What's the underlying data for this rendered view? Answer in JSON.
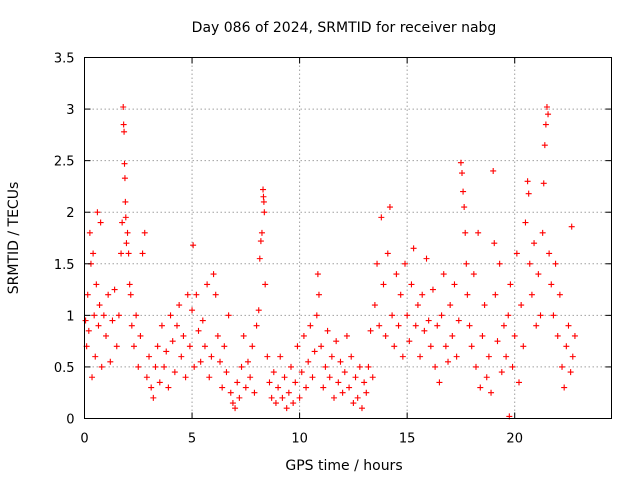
{
  "chart_data": {
    "type": "scatter",
    "title": "Day 086 of 2024, SRMTID for receiver nabg",
    "xlabel": "GPS time / hours",
    "ylabel": "SRMTID / TECUs",
    "xlim": [
      0,
      24.5
    ],
    "ylim": [
      0,
      3.5
    ],
    "xticks": [
      0,
      5,
      10,
      15,
      20
    ],
    "xtick_labels": [
      "0",
      "5",
      "10",
      "15",
      "20"
    ],
    "yticks": [
      0,
      0.5,
      1,
      1.5,
      2,
      2.5,
      3,
      3.5
    ],
    "ytick_labels": [
      "0",
      "0.5",
      "1",
      "1.5",
      "2",
      "2.5",
      "3",
      "3.5"
    ],
    "grid": true,
    "marker": "+",
    "color": "#ff0000",
    "series": [
      {
        "name": "SRMTID",
        "points": [
          [
            0.05,
            0.95
          ],
          [
            0.1,
            0.7
          ],
          [
            0.15,
            1.2
          ],
          [
            0.2,
            0.85
          ],
          [
            0.25,
            1.8
          ],
          [
            0.3,
            1.5
          ],
          [
            0.35,
            0.4
          ],
          [
            0.4,
            1.6
          ],
          [
            0.45,
            1.0
          ],
          [
            0.5,
            0.6
          ],
          [
            0.55,
            1.3
          ],
          [
            0.6,
            2.0
          ],
          [
            0.65,
            0.9
          ],
          [
            0.7,
            1.1
          ],
          [
            0.75,
            1.9
          ],
          [
            0.8,
            0.5
          ],
          [
            0.9,
            1.0
          ],
          [
            1.0,
            0.8
          ],
          [
            1.1,
            1.2
          ],
          [
            1.2,
            0.55
          ],
          [
            1.3,
            0.95
          ],
          [
            1.4,
            1.25
          ],
          [
            1.5,
            0.7
          ],
          [
            1.6,
            1.0
          ],
          [
            1.7,
            1.6
          ],
          [
            1.75,
            1.9
          ],
          [
            1.8,
            3.02
          ],
          [
            1.82,
            2.85
          ],
          [
            1.84,
            2.78
          ],
          [
            1.86,
            2.47
          ],
          [
            1.88,
            2.33
          ],
          [
            1.9,
            2.1
          ],
          [
            1.92,
            1.95
          ],
          [
            1.95,
            1.7
          ],
          [
            2.0,
            1.8
          ],
          [
            2.05,
            1.6
          ],
          [
            2.1,
            1.3
          ],
          [
            2.15,
            1.2
          ],
          [
            2.2,
            0.9
          ],
          [
            2.3,
            0.7
          ],
          [
            2.4,
            1.0
          ],
          [
            2.5,
            0.5
          ],
          [
            2.6,
            0.8
          ],
          [
            2.7,
            1.6
          ],
          [
            2.8,
            1.8
          ],
          [
            2.9,
            0.4
          ],
          [
            3.0,
            0.6
          ],
          [
            3.1,
            0.3
          ],
          [
            3.2,
            0.2
          ],
          [
            3.3,
            0.5
          ],
          [
            3.4,
            0.7
          ],
          [
            3.5,
            0.35
          ],
          [
            3.6,
            0.9
          ],
          [
            3.7,
            0.5
          ],
          [
            3.8,
            0.65
          ],
          [
            3.9,
            0.3
          ],
          [
            4.0,
            1.0
          ],
          [
            4.1,
            0.75
          ],
          [
            4.2,
            0.45
          ],
          [
            4.3,
            0.9
          ],
          [
            4.4,
            1.1
          ],
          [
            4.5,
            0.6
          ],
          [
            4.6,
            0.8
          ],
          [
            4.7,
            0.4
          ],
          [
            4.8,
            1.2
          ],
          [
            4.9,
            0.7
          ],
          [
            5.0,
            1.05
          ],
          [
            5.05,
            1.68
          ],
          [
            5.1,
            0.5
          ],
          [
            5.2,
            1.2
          ],
          [
            5.3,
            0.85
          ],
          [
            5.4,
            0.55
          ],
          [
            5.5,
            0.95
          ],
          [
            5.6,
            0.7
          ],
          [
            5.7,
            1.3
          ],
          [
            5.8,
            0.4
          ],
          [
            5.9,
            0.6
          ],
          [
            6.0,
            1.4
          ],
          [
            6.1,
            1.2
          ],
          [
            6.2,
            0.8
          ],
          [
            6.3,
            0.55
          ],
          [
            6.4,
            0.3
          ],
          [
            6.5,
            0.7
          ],
          [
            6.6,
            0.45
          ],
          [
            6.7,
            1.0
          ],
          [
            6.8,
            0.25
          ],
          [
            6.9,
            0.15
          ],
          [
            7.0,
            0.1
          ],
          [
            7.1,
            0.35
          ],
          [
            7.2,
            0.2
          ],
          [
            7.3,
            0.5
          ],
          [
            7.4,
            0.8
          ],
          [
            7.5,
            0.3
          ],
          [
            7.6,
            0.55
          ],
          [
            7.7,
            0.4
          ],
          [
            7.8,
            0.7
          ],
          [
            7.9,
            0.25
          ],
          [
            8.0,
            0.9
          ],
          [
            8.1,
            1.05
          ],
          [
            8.15,
            1.55
          ],
          [
            8.2,
            1.72
          ],
          [
            8.25,
            1.8
          ],
          [
            8.3,
            2.22
          ],
          [
            8.32,
            2.15
          ],
          [
            8.34,
            2.1
          ],
          [
            8.36,
            2.0
          ],
          [
            8.4,
            1.3
          ],
          [
            8.5,
            0.6
          ],
          [
            8.6,
            0.35
          ],
          [
            8.7,
            0.2
          ],
          [
            8.8,
            0.45
          ],
          [
            8.9,
            0.15
          ],
          [
            9.0,
            0.3
          ],
          [
            9.1,
            0.6
          ],
          [
            9.2,
            0.2
          ],
          [
            9.3,
            0.4
          ],
          [
            9.4,
            0.1
          ],
          [
            9.5,
            0.25
          ],
          [
            9.6,
            0.5
          ],
          [
            9.7,
            0.15
          ],
          [
            9.8,
            0.35
          ],
          [
            9.9,
            0.7
          ],
          [
            10.0,
            0.2
          ],
          [
            10.1,
            0.45
          ],
          [
            10.2,
            0.8
          ],
          [
            10.3,
            0.3
          ],
          [
            10.4,
            0.55
          ],
          [
            10.5,
            0.9
          ],
          [
            10.6,
            0.4
          ],
          [
            10.7,
            0.65
          ],
          [
            10.8,
            1.0
          ],
          [
            10.85,
            1.4
          ],
          [
            10.9,
            1.2
          ],
          [
            11.0,
            0.7
          ],
          [
            11.1,
            0.3
          ],
          [
            11.2,
            0.5
          ],
          [
            11.3,
            0.85
          ],
          [
            11.4,
            0.4
          ],
          [
            11.5,
            0.6
          ],
          [
            11.6,
            0.2
          ],
          [
            11.7,
            0.75
          ],
          [
            11.8,
            0.35
          ],
          [
            11.9,
            0.55
          ],
          [
            12.0,
            0.25
          ],
          [
            12.1,
            0.45
          ],
          [
            12.2,
            0.8
          ],
          [
            12.3,
            0.3
          ],
          [
            12.4,
            0.6
          ],
          [
            12.5,
            0.15
          ],
          [
            12.6,
            0.4
          ],
          [
            12.7,
            0.2
          ],
          [
            12.8,
            0.5
          ],
          [
            12.9,
            0.1
          ],
          [
            13.0,
            0.35
          ],
          [
            13.1,
            0.25
          ],
          [
            13.2,
            0.5
          ],
          [
            13.3,
            0.85
          ],
          [
            13.4,
            0.4
          ],
          [
            13.5,
            1.1
          ],
          [
            13.6,
            1.5
          ],
          [
            13.7,
            0.9
          ],
          [
            13.8,
            1.95
          ],
          [
            13.9,
            1.3
          ],
          [
            14.0,
            0.8
          ],
          [
            14.1,
            1.6
          ],
          [
            14.2,
            2.05
          ],
          [
            14.3,
            1.0
          ],
          [
            14.4,
            0.7
          ],
          [
            14.5,
            1.4
          ],
          [
            14.6,
            0.9
          ],
          [
            14.7,
            1.2
          ],
          [
            14.8,
            0.6
          ],
          [
            14.9,
            1.5
          ],
          [
            15.0,
            1.0
          ],
          [
            15.1,
            0.75
          ],
          [
            15.2,
            1.3
          ],
          [
            15.3,
            1.65
          ],
          [
            15.4,
            0.9
          ],
          [
            15.5,
            1.1
          ],
          [
            15.6,
            0.6
          ],
          [
            15.7,
            1.2
          ],
          [
            15.8,
            0.85
          ],
          [
            15.9,
            1.55
          ],
          [
            16.0,
            0.95
          ],
          [
            16.1,
            0.7
          ],
          [
            16.2,
            1.25
          ],
          [
            16.3,
            0.5
          ],
          [
            16.4,
            0.9
          ],
          [
            16.5,
            0.35
          ],
          [
            16.6,
            1.0
          ],
          [
            16.7,
            1.4
          ],
          [
            16.8,
            0.7
          ],
          [
            16.9,
            0.55
          ],
          [
            17.0,
            1.1
          ],
          [
            17.1,
            0.8
          ],
          [
            17.2,
            1.3
          ],
          [
            17.3,
            0.6
          ],
          [
            17.4,
            0.95
          ],
          [
            17.5,
            2.48
          ],
          [
            17.55,
            2.38
          ],
          [
            17.6,
            2.2
          ],
          [
            17.65,
            2.05
          ],
          [
            17.7,
            1.8
          ],
          [
            17.75,
            1.5
          ],
          [
            17.8,
            1.2
          ],
          [
            17.9,
            0.9
          ],
          [
            18.0,
            0.7
          ],
          [
            18.1,
            1.4
          ],
          [
            18.2,
            0.5
          ],
          [
            18.3,
            1.8
          ],
          [
            18.4,
            0.3
          ],
          [
            18.5,
            0.8
          ],
          [
            18.6,
            1.1
          ],
          [
            18.7,
            0.4
          ],
          [
            18.8,
            0.6
          ],
          [
            18.9,
            0.25
          ],
          [
            19.0,
            2.4
          ],
          [
            19.05,
            1.7
          ],
          [
            19.1,
            1.2
          ],
          [
            19.2,
            0.75
          ],
          [
            19.3,
            1.5
          ],
          [
            19.4,
            0.45
          ],
          [
            19.5,
            0.9
          ],
          [
            19.6,
            0.6
          ],
          [
            19.7,
            1.0
          ],
          [
            19.75,
            0.02
          ],
          [
            19.8,
            1.3
          ],
          [
            19.9,
            0.5
          ],
          [
            20.0,
            0.8
          ],
          [
            20.1,
            1.6
          ],
          [
            20.2,
            0.35
          ],
          [
            20.3,
            1.1
          ],
          [
            20.4,
            0.7
          ],
          [
            20.5,
            1.9
          ],
          [
            20.6,
            2.3
          ],
          [
            20.65,
            2.18
          ],
          [
            20.7,
            1.5
          ],
          [
            20.8,
            1.2
          ],
          [
            20.9,
            1.7
          ],
          [
            21.0,
            0.9
          ],
          [
            21.1,
            1.4
          ],
          [
            21.2,
            1.0
          ],
          [
            21.3,
            1.8
          ],
          [
            21.35,
            2.28
          ],
          [
            21.4,
            2.65
          ],
          [
            21.45,
            2.85
          ],
          [
            21.5,
            3.02
          ],
          [
            21.55,
            2.95
          ],
          [
            21.6,
            1.6
          ],
          [
            21.7,
            1.3
          ],
          [
            21.8,
            1.0
          ],
          [
            21.9,
            1.5
          ],
          [
            22.0,
            0.8
          ],
          [
            22.1,
            1.2
          ],
          [
            22.2,
            0.5
          ],
          [
            22.3,
            0.3
          ],
          [
            22.4,
            0.7
          ],
          [
            22.5,
            0.9
          ],
          [
            22.6,
            0.45
          ],
          [
            22.65,
            1.86
          ],
          [
            22.7,
            0.6
          ],
          [
            22.8,
            0.8
          ]
        ]
      }
    ]
  }
}
